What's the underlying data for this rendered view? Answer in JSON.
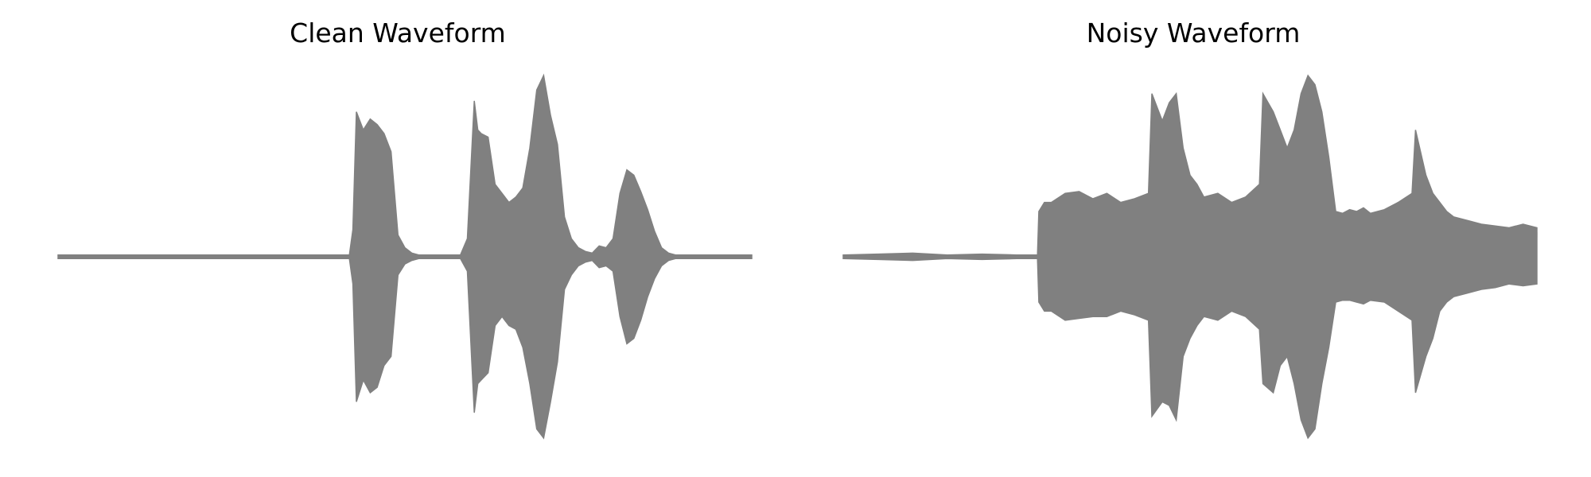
{
  "figure": {
    "waveform_color": "#808080"
  },
  "chart_data": [
    {
      "type": "line",
      "title": "Clean Waveform",
      "xlabel": "",
      "ylabel": "",
      "grid": false,
      "axes_visible": false,
      "ylim": [
        -1.0,
        1.0
      ],
      "x": [
        0.0,
        0.05,
        0.1,
        0.15,
        0.2,
        0.25,
        0.3,
        0.35,
        0.4,
        0.42,
        0.425,
        0.43,
        0.44,
        0.45,
        0.46,
        0.47,
        0.48,
        0.49,
        0.5,
        0.51,
        0.52,
        0.54,
        0.56,
        0.58,
        0.59,
        0.6,
        0.605,
        0.61,
        0.62,
        0.63,
        0.64,
        0.65,
        0.66,
        0.67,
        0.68,
        0.69,
        0.7,
        0.71,
        0.72,
        0.73,
        0.74,
        0.75,
        0.76,
        0.77,
        0.78,
        0.79,
        0.8,
        0.81,
        0.82,
        0.83,
        0.84,
        0.85,
        0.86,
        0.87,
        0.88,
        0.89,
        0.9,
        0.92,
        0.94,
        0.96,
        0.98,
        1.0
      ],
      "series": [
        {
          "values_upper": [
            0.01,
            0.01,
            0.01,
            0.01,
            0.01,
            0.01,
            0.01,
            0.01,
            0.01,
            0.01,
            0.15,
            0.8,
            0.7,
            0.76,
            0.73,
            0.68,
            0.58,
            0.12,
            0.05,
            0.02,
            0.01,
            0.01,
            0.01,
            0.01,
            0.1,
            0.86,
            0.7,
            0.68,
            0.66,
            0.4,
            0.35,
            0.3,
            0.33,
            0.38,
            0.6,
            0.92,
            1.0,
            0.78,
            0.62,
            0.22,
            0.1,
            0.05,
            0.03,
            0.02,
            0.06,
            0.05,
            0.1,
            0.35,
            0.48,
            0.45,
            0.36,
            0.26,
            0.14,
            0.05,
            0.02,
            0.01,
            0.01,
            0.01,
            0.01,
            0.01,
            0.01,
            0.01
          ],
          "values_lower": [
            -0.01,
            -0.01,
            -0.01,
            -0.01,
            -0.01,
            -0.01,
            -0.01,
            -0.01,
            -0.01,
            -0.01,
            -0.15,
            -0.8,
            -0.68,
            -0.75,
            -0.72,
            -0.6,
            -0.55,
            -0.1,
            -0.04,
            -0.02,
            -0.01,
            -0.01,
            -0.01,
            -0.01,
            -0.08,
            -0.86,
            -0.7,
            -0.68,
            -0.64,
            -0.38,
            -0.33,
            -0.38,
            -0.4,
            -0.5,
            -0.7,
            -0.95,
            -1.0,
            -0.8,
            -0.58,
            -0.18,
            -0.1,
            -0.05,
            -0.03,
            -0.02,
            -0.06,
            -0.05,
            -0.08,
            -0.33,
            -0.48,
            -0.45,
            -0.35,
            -0.22,
            -0.12,
            -0.05,
            -0.02,
            -0.01,
            -0.01,
            -0.01,
            -0.01,
            -0.01,
            -0.01,
            -0.01
          ]
        }
      ]
    },
    {
      "type": "line",
      "title": "Noisy Waveform",
      "xlabel": "",
      "ylabel": "",
      "grid": false,
      "axes_visible": false,
      "ylim": [
        -1.0,
        1.0
      ],
      "x": [
        0.0,
        0.05,
        0.1,
        0.15,
        0.2,
        0.25,
        0.28,
        0.282,
        0.29,
        0.3,
        0.32,
        0.34,
        0.36,
        0.38,
        0.4,
        0.42,
        0.44,
        0.445,
        0.46,
        0.47,
        0.48,
        0.49,
        0.5,
        0.51,
        0.52,
        0.54,
        0.56,
        0.58,
        0.6,
        0.605,
        0.62,
        0.63,
        0.64,
        0.65,
        0.66,
        0.67,
        0.68,
        0.69,
        0.7,
        0.71,
        0.72,
        0.73,
        0.74,
        0.75,
        0.76,
        0.78,
        0.8,
        0.82,
        0.825,
        0.84,
        0.85,
        0.86,
        0.87,
        0.88,
        0.9,
        0.92,
        0.94,
        0.96,
        0.98,
        1.0
      ],
      "series": [
        {
          "values_upper": [
            0.01,
            0.015,
            0.02,
            0.01,
            0.015,
            0.01,
            0.01,
            0.25,
            0.3,
            0.3,
            0.35,
            0.36,
            0.32,
            0.35,
            0.3,
            0.32,
            0.35,
            0.9,
            0.75,
            0.85,
            0.9,
            0.6,
            0.45,
            0.4,
            0.33,
            0.35,
            0.3,
            0.33,
            0.4,
            0.9,
            0.8,
            0.7,
            0.6,
            0.7,
            0.9,
            1.0,
            0.95,
            0.8,
            0.55,
            0.25,
            0.24,
            0.26,
            0.25,
            0.27,
            0.24,
            0.26,
            0.3,
            0.35,
            0.7,
            0.45,
            0.35,
            0.3,
            0.25,
            0.22,
            0.2,
            0.18,
            0.17,
            0.16,
            0.18,
            0.16
          ],
          "values_lower": [
            -0.01,
            -0.015,
            -0.02,
            -0.01,
            -0.015,
            -0.01,
            -0.01,
            -0.25,
            -0.3,
            -0.3,
            -0.35,
            -0.34,
            -0.33,
            -0.33,
            -0.3,
            -0.32,
            -0.35,
            -0.88,
            -0.8,
            -0.82,
            -0.9,
            -0.55,
            -0.45,
            -0.38,
            -0.33,
            -0.35,
            -0.3,
            -0.33,
            -0.4,
            -0.7,
            -0.75,
            -0.6,
            -0.55,
            -0.7,
            -0.9,
            -1.0,
            -0.95,
            -0.7,
            -0.5,
            -0.25,
            -0.24,
            -0.24,
            -0.25,
            -0.26,
            -0.24,
            -0.25,
            -0.3,
            -0.35,
            -0.75,
            -0.55,
            -0.45,
            -0.3,
            -0.25,
            -0.22,
            -0.2,
            -0.18,
            -0.17,
            -0.15,
            -0.16,
            -0.15
          ]
        }
      ]
    }
  ]
}
